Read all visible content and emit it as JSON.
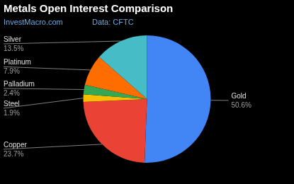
{
  "chart_data": {
    "type": "pie",
    "title": "Metals Open Interest Comparison",
    "subtitle": "InvestMacro.com",
    "annotations": [
      "Data: CFTC"
    ],
    "categories": [
      "Gold",
      "Copper",
      "Steel",
      "Palladium",
      "Platinum",
      "Silver"
    ],
    "values": [
      50.6,
      23.7,
      1.9,
      2.4,
      7.9,
      13.5
    ],
    "value_labels": [
      "50.6%",
      "23.7%",
      "1.9%",
      "2.4%",
      "7.9%",
      "13.5%"
    ],
    "colors": [
      "#4285f4",
      "#ea4335",
      "#fbbc04",
      "#34a853",
      "#ff6d01",
      "#46bdc6"
    ],
    "data_labels": true
  }
}
